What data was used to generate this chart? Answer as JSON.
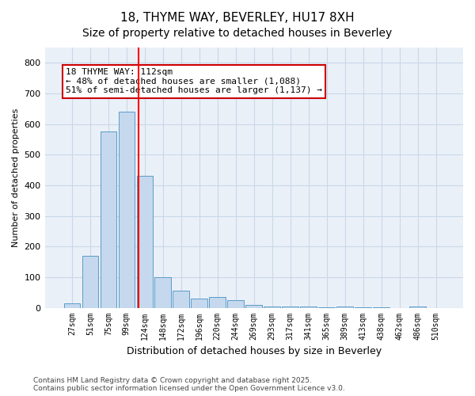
{
  "title1": "18, THYME WAY, BEVERLEY, HU17 8XH",
  "title2": "Size of property relative to detached houses in Beverley",
  "xlabel": "Distribution of detached houses by size in Beverley",
  "ylabel": "Number of detached properties",
  "bar_labels": [
    "27sqm",
    "51sqm",
    "75sqm",
    "99sqm",
    "124sqm",
    "148sqm",
    "172sqm",
    "196sqm",
    "220sqm",
    "244sqm",
    "269sqm",
    "293sqm",
    "317sqm",
    "341sqm",
    "365sqm",
    "389sqm",
    "413sqm",
    "438sqm",
    "462sqm",
    "486sqm",
    "510sqm"
  ],
  "bar_values": [
    15,
    170,
    575,
    640,
    430,
    100,
    55,
    30,
    35,
    25,
    8,
    5,
    3,
    4,
    2,
    4,
    2,
    2,
    0,
    5,
    0
  ],
  "bar_color": "#c5d8ed",
  "bar_edge_color": "#5a9cc8",
  "red_line_x": 4,
  "annotation_text": "18 THYME WAY: 112sqm\n← 48% of detached houses are smaller (1,088)\n51% of semi-detached houses are larger (1,137) →",
  "annotation_box_color": "#ffffff",
  "annotation_box_edge": "#cc0000",
  "annotation_fontsize": 8,
  "ylim": [
    0,
    850
  ],
  "yticks": [
    0,
    100,
    200,
    300,
    400,
    500,
    600,
    700,
    800
  ],
  "grid_color": "#c8d8e8",
  "background_color": "#eaf0f8",
  "footer_text": "Contains HM Land Registry data © Crown copyright and database right 2025.\nContains public sector information licensed under the Open Government Licence v3.0.",
  "title_fontsize": 11,
  "subtitle_fontsize": 10
}
